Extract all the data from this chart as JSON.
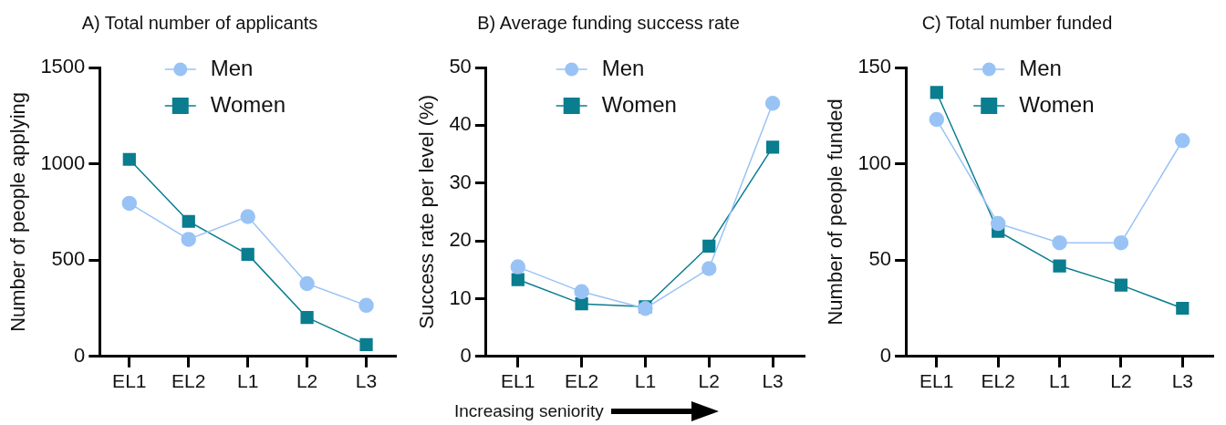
{
  "chart_data": [
    {
      "type": "line",
      "title": "A) Total number of applicants",
      "ylabel": "Number of people applying",
      "categories": [
        "EL1",
        "EL2",
        "L1",
        "L2",
        "L3"
      ],
      "ylim": [
        0,
        1500
      ],
      "yticks": [
        0,
        500,
        1000,
        1500
      ],
      "legend": "top",
      "series": [
        {
          "name": "Men",
          "color": "#99c3f5",
          "marker": "circle",
          "values": [
            795,
            608,
            726,
            378,
            265
          ]
        },
        {
          "name": "Women",
          "color": "#0a7d8f",
          "marker": "square",
          "values": [
            1023,
            701,
            530,
            202,
            61
          ]
        }
      ]
    },
    {
      "type": "line",
      "title": "B) Average funding success rate",
      "ylabel": "Success rate per level (%)",
      "categories": [
        "EL1",
        "EL2",
        "L1",
        "L2",
        "L3"
      ],
      "ylim": [
        0,
        50
      ],
      "yticks": [
        0,
        10,
        20,
        30,
        40,
        50
      ],
      "legend": "top",
      "annotations": [
        "Increasing seniority"
      ],
      "series": [
        {
          "name": "Men",
          "color": "#99c3f5",
          "marker": "circle",
          "values": [
            15.5,
            11.2,
            8.3,
            15.2,
            43.8
          ]
        },
        {
          "name": "Women",
          "color": "#0a7d8f",
          "marker": "square",
          "values": [
            13.3,
            9.1,
            8.6,
            19.1,
            36.2
          ]
        }
      ]
    },
    {
      "type": "line",
      "title": "C) Total number funded",
      "ylabel": "Number of people funded",
      "categories": [
        "EL1",
        "EL2",
        "L1",
        "L2",
        "L3"
      ],
      "ylim": [
        0,
        150
      ],
      "yticks": [
        0,
        50,
        100,
        150
      ],
      "legend": "top",
      "series": [
        {
          "name": "Men",
          "color": "#99c3f5",
          "marker": "circle",
          "values": [
            123,
            69,
            59,
            59,
            112
          ]
        },
        {
          "name": "Women",
          "color": "#0a7d8f",
          "marker": "square",
          "values": [
            137,
            65,
            47,
            37,
            25
          ]
        }
      ]
    }
  ]
}
